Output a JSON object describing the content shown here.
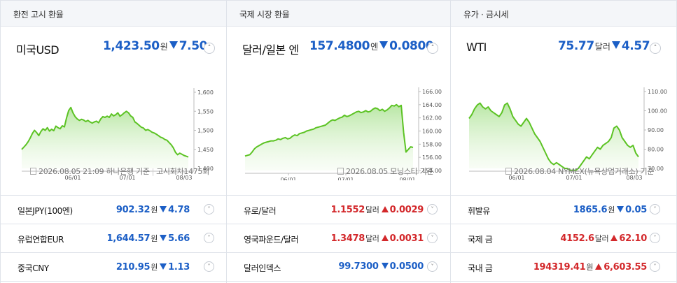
{
  "panels": [
    {
      "header": "환전 고시 환율",
      "card": {
        "name": "미국USD",
        "price": "1,423.50",
        "unit": "원",
        "change": "7.50",
        "direction": "down",
        "footer_date": "2026.08.05 21:09 하나은행 기준",
        "footer_extra": "고시회차1475회"
      },
      "rows": [
        {
          "name": "일본JPY(100엔)",
          "value": "902.32",
          "unit": "원",
          "change": "4.78",
          "direction": "down"
        },
        {
          "name": "유럽연합EUR",
          "value": "1,644.57",
          "unit": "원",
          "change": "5.66",
          "direction": "down"
        },
        {
          "name": "중국CNY",
          "value": "210.95",
          "unit": "원",
          "change": "1.13",
          "direction": "down"
        }
      ]
    },
    {
      "header": "국제 시장 환율",
      "card": {
        "name": "달러/일본 엔",
        "price": "157.4800",
        "unit": "엔",
        "change": "0.0800",
        "direction": "down",
        "footer_date": "2026.08.05 모닝스타 기준",
        "footer_extra": ""
      },
      "rows": [
        {
          "name": "유로/달러",
          "value": "1.1552",
          "unit": "달러",
          "change": "0.0029",
          "direction": "up"
        },
        {
          "name": "영국파운드/달러",
          "value": "1.3478",
          "unit": "달러",
          "change": "0.0031",
          "direction": "up"
        },
        {
          "name": "달러인덱스",
          "value": "99.7300",
          "unit": "",
          "change": "0.0500",
          "direction": "down"
        }
      ]
    },
    {
      "header": "유가 · 금시세",
      "card": {
        "name": "WTI",
        "price": "75.77",
        "unit": "달러",
        "change": "4.57",
        "direction": "down",
        "footer_date": "2026.08.04 NYMEX(뉴욕상업거래소) 기준",
        "footer_extra": ""
      },
      "rows": [
        {
          "name": "휘발유",
          "value": "1865.6",
          "unit": "원",
          "change": "0.05",
          "direction": "down"
        },
        {
          "name": "국제 금",
          "value": "4152.6",
          "unit": "달러",
          "change": "62.10",
          "direction": "up"
        },
        {
          "name": "국내 금",
          "value": "194319.41",
          "unit": "원",
          "change": "6,603.55",
          "direction": "up"
        }
      ]
    }
  ],
  "chart_data": [
    {
      "type": "area",
      "x_ticks": [
        "06/01",
        "07/01",
        "08/03"
      ],
      "y_ticks": [
        "1,600",
        "1,550",
        "1,500",
        "1,450",
        "1,400"
      ],
      "ylim": [
        1400,
        1600
      ],
      "values": [
        1450,
        1456,
        1462,
        1470,
        1480,
        1492,
        1500,
        1494,
        1486,
        1497,
        1504,
        1500,
        1507,
        1498,
        1503,
        1499,
        1511,
        1507,
        1504,
        1512,
        1509,
        1533,
        1552,
        1560,
        1546,
        1536,
        1530,
        1526,
        1529,
        1527,
        1523,
        1526,
        1522,
        1519,
        1522,
        1524,
        1520,
        1530,
        1536,
        1534,
        1537,
        1534,
        1543,
        1538,
        1541,
        1546,
        1537,
        1541,
        1546,
        1550,
        1546,
        1538,
        1534,
        1522,
        1518,
        1513,
        1508,
        1506,
        1500,
        1502,
        1499,
        1495,
        1493,
        1490,
        1486,
        1482,
        1480,
        1476,
        1474,
        1468,
        1462,
        1454,
        1442,
        1436,
        1440,
        1437,
        1434,
        1432,
        1430
      ]
    },
    {
      "type": "area",
      "x_ticks": [
        "06/01",
        "07/01",
        "08/01"
      ],
      "y_ticks": [
        "166.00",
        "164.00",
        "162.00",
        "160.00",
        "158.00",
        "156.00",
        "154.00"
      ],
      "ylim": [
        154,
        166
      ],
      "values": [
        156.2,
        156.3,
        156.4,
        156.8,
        157.3,
        157.6,
        157.8,
        158.0,
        158.2,
        158.3,
        158.4,
        158.5,
        158.5,
        158.6,
        158.8,
        158.7,
        158.9,
        159.0,
        158.8,
        158.9,
        159.2,
        159.4,
        159.3,
        159.6,
        159.7,
        159.8,
        160.0,
        160.1,
        160.2,
        160.3,
        160.5,
        160.6,
        160.7,
        160.8,
        160.9,
        161.2,
        161.5,
        161.7,
        161.6,
        161.8,
        162.0,
        162.1,
        162.4,
        162.2,
        162.3,
        162.5,
        162.7,
        162.9,
        163.0,
        162.8,
        162.9,
        163.1,
        162.9,
        163.0,
        163.3,
        163.5,
        163.4,
        163.1,
        163.3,
        163.0,
        163.2,
        163.5,
        163.9,
        163.8,
        164.0,
        163.7,
        163.9,
        159.8,
        156.8,
        157.2,
        157.6,
        157.5
      ]
    },
    {
      "type": "area",
      "x_ticks": [
        "06/01",
        "07/01",
        "08/03"
      ],
      "y_ticks": [
        "110.00",
        "100.00",
        "90.00",
        "80.00",
        "70.00"
      ],
      "ylim": [
        70,
        110
      ],
      "values": [
        96,
        98,
        101,
        103,
        104,
        102,
        101,
        102,
        100,
        99,
        98,
        97,
        99,
        103,
        104,
        101,
        97,
        95,
        93,
        92,
        94,
        96,
        94,
        91,
        88,
        86,
        84,
        81,
        78,
        75,
        73,
        72,
        73,
        72,
        71,
        70,
        70,
        69,
        69,
        69,
        70,
        72,
        74,
        76,
        75,
        77,
        79,
        81,
        80,
        82,
        83,
        84,
        86,
        91,
        92,
        90,
        86,
        84,
        82,
        81,
        82,
        78,
        76
      ]
    }
  ]
}
